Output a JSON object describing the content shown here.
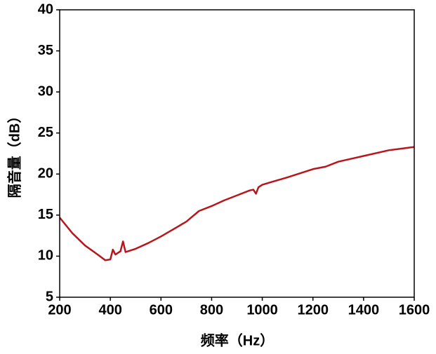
{
  "chart_data": {
    "type": "line",
    "x_label": "频率（Hz）",
    "y_label": "隔音量（dB）",
    "series": [
      {
        "color": "#b8161c",
        "x": [
          200,
          250,
          300,
          350,
          380,
          400,
          410,
          420,
          440,
          450,
          460,
          500,
          550,
          600,
          650,
          700,
          750,
          800,
          850,
          900,
          950,
          965,
          975,
          985,
          1000,
          1100,
          1200,
          1250,
          1300,
          1400,
          1500,
          1550,
          1600
        ],
        "values": [
          14.7,
          12.8,
          11.3,
          10.2,
          9.5,
          9.6,
          10.8,
          10.2,
          10.6,
          11.8,
          10.5,
          10.9,
          11.6,
          12.4,
          13.3,
          14.2,
          15.5,
          16.1,
          16.8,
          17.4,
          18.0,
          18.1,
          17.6,
          18.4,
          18.7,
          19.6,
          20.6,
          20.9,
          21.5,
          22.2,
          22.9,
          23.1,
          23.3
        ]
      }
    ],
    "xlim": [
      200,
      1600
    ],
    "xticks": [
      200,
      400,
      600,
      800,
      1000,
      1200,
      1400,
      1600
    ],
    "ylim": [
      5,
      40
    ],
    "yticks": [
      5,
      10,
      15,
      20,
      25,
      30,
      35,
      40
    ],
    "grid": false
  }
}
